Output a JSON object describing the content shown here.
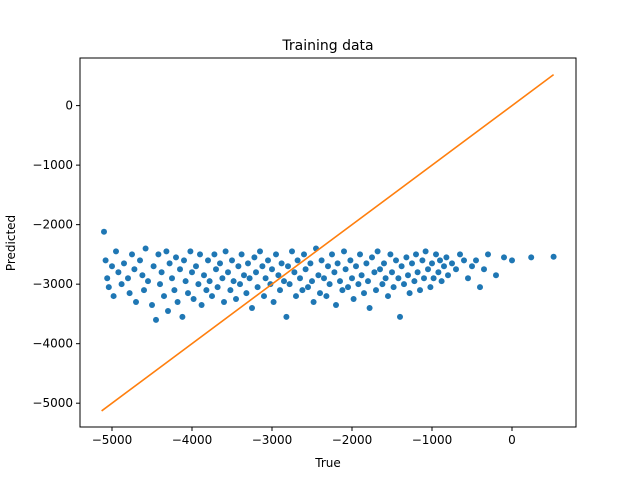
{
  "chart_data": {
    "type": "scatter",
    "title": "Training data",
    "xlabel": "True",
    "ylabel": "Predicted",
    "xlim": [
      -5400,
      800
    ],
    "ylim": [
      -5400,
      800
    ],
    "xticks": [
      -5000,
      -4000,
      -3000,
      -2000,
      -1000,
      0
    ],
    "xtick_labels": [
      "−5000",
      "−4000",
      "−3000",
      "−2000",
      "−1000",
      "0"
    ],
    "yticks": [
      -5000,
      -4000,
      -3000,
      -2000,
      -1000,
      0
    ],
    "ytick_labels": [
      "−5000",
      "−4000",
      "−3000",
      "−2000",
      "−1000",
      "0"
    ],
    "grid": false,
    "series": [
      {
        "kind": "scatter",
        "color": "#1f77b4",
        "points": [
          [
            -5100,
            -2120
          ],
          [
            -5080,
            -2600
          ],
          [
            -5060,
            -2900
          ],
          [
            -5040,
            -3050
          ],
          [
            -5000,
            -2700
          ],
          [
            -4980,
            -3200
          ],
          [
            -4950,
            -2450
          ],
          [
            -4920,
            -2800
          ],
          [
            -4880,
            -3000
          ],
          [
            -4850,
            -2650
          ],
          [
            -4800,
            -2900
          ],
          [
            -4780,
            -3150
          ],
          [
            -4750,
            -2500
          ],
          [
            -4720,
            -2750
          ],
          [
            -4700,
            -3300
          ],
          [
            -4650,
            -2600
          ],
          [
            -4620,
            -2850
          ],
          [
            -4600,
            -3100
          ],
          [
            -4580,
            -2400
          ],
          [
            -4550,
            -2950
          ],
          [
            -4500,
            -3350
          ],
          [
            -4480,
            -2700
          ],
          [
            -4450,
            -3600
          ],
          [
            -4420,
            -2500
          ],
          [
            -4400,
            -3000
          ],
          [
            -4380,
            -2800
          ],
          [
            -4350,
            -3200
          ],
          [
            -4320,
            -2450
          ],
          [
            -4300,
            -3450
          ],
          [
            -4280,
            -2650
          ],
          [
            -4250,
            -2900
          ],
          [
            -4220,
            -3100
          ],
          [
            -4200,
            -2550
          ],
          [
            -4180,
            -3300
          ],
          [
            -4150,
            -2750
          ],
          [
            -4120,
            -3550
          ],
          [
            -4100,
            -2600
          ],
          [
            -4080,
            -2950
          ],
          [
            -4050,
            -3150
          ],
          [
            -4020,
            -2450
          ],
          [
            -4000,
            -2800
          ],
          [
            -3980,
            -3250
          ],
          [
            -3950,
            -2700
          ],
          [
            -3920,
            -3000
          ],
          [
            -3900,
            -2500
          ],
          [
            -3880,
            -3350
          ],
          [
            -3850,
            -2850
          ],
          [
            -3820,
            -3100
          ],
          [
            -3800,
            -2600
          ],
          [
            -3780,
            -2950
          ],
          [
            -3750,
            -3200
          ],
          [
            -3720,
            -2500
          ],
          [
            -3700,
            -2750
          ],
          [
            -3680,
            -3050
          ],
          [
            -3650,
            -2650
          ],
          [
            -3620,
            -2900
          ],
          [
            -3600,
            -3300
          ],
          [
            -3580,
            -2450
          ],
          [
            -3550,
            -2800
          ],
          [
            -3520,
            -3100
          ],
          [
            -3500,
            -2600
          ],
          [
            -3480,
            -2950
          ],
          [
            -3450,
            -3250
          ],
          [
            -3420,
            -2700
          ],
          [
            -3400,
            -3000
          ],
          [
            -3380,
            -2500
          ],
          [
            -3350,
            -2850
          ],
          [
            -3320,
            -3150
          ],
          [
            -3300,
            -2650
          ],
          [
            -3280,
            -2900
          ],
          [
            -3250,
            -3400
          ],
          [
            -3220,
            -2550
          ],
          [
            -3200,
            -2800
          ],
          [
            -3180,
            -3050
          ],
          [
            -3150,
            -2450
          ],
          [
            -3120,
            -2700
          ],
          [
            -3100,
            -3200
          ],
          [
            -3080,
            -2900
          ],
          [
            -3050,
            -2600
          ],
          [
            -3020,
            -3000
          ],
          [
            -3000,
            -2750
          ],
          [
            -2980,
            -3300
          ],
          [
            -2950,
            -2500
          ],
          [
            -2920,
            -2850
          ],
          [
            -2900,
            -3100
          ],
          [
            -2880,
            -2650
          ],
          [
            -2850,
            -2950
          ],
          [
            -2820,
            -3550
          ],
          [
            -2800,
            -2700
          ],
          [
            -2780,
            -3000
          ],
          [
            -2750,
            -2450
          ],
          [
            -2720,
            -2800
          ],
          [
            -2700,
            -3200
          ],
          [
            -2680,
            -2600
          ],
          [
            -2650,
            -2900
          ],
          [
            -2620,
            -3100
          ],
          [
            -2600,
            -2500
          ],
          [
            -2580,
            -2750
          ],
          [
            -2550,
            -3050
          ],
          [
            -2520,
            -2650
          ],
          [
            -2500,
            -2950
          ],
          [
            -2480,
            -3300
          ],
          [
            -2450,
            -2400
          ],
          [
            -2420,
            -2850
          ],
          [
            -2400,
            -3150
          ],
          [
            -2380,
            -2600
          ],
          [
            -2350,
            -2900
          ],
          [
            -2320,
            -3200
          ],
          [
            -2300,
            -2700
          ],
          [
            -2280,
            -3000
          ],
          [
            -2250,
            -2500
          ],
          [
            -2220,
            -2800
          ],
          [
            -2200,
            -3350
          ],
          [
            -2180,
            -2650
          ],
          [
            -2150,
            -2950
          ],
          [
            -2120,
            -3100
          ],
          [
            -2100,
            -2450
          ],
          [
            -2080,
            -2750
          ],
          [
            -2050,
            -3050
          ],
          [
            -2020,
            -2600
          ],
          [
            -2000,
            -2900
          ],
          [
            -1980,
            -3250
          ],
          [
            -1950,
            -2700
          ],
          [
            -1920,
            -3000
          ],
          [
            -1900,
            -2500
          ],
          [
            -1880,
            -2850
          ],
          [
            -1850,
            -3150
          ],
          [
            -1820,
            -2650
          ],
          [
            -1800,
            -2950
          ],
          [
            -1780,
            -3400
          ],
          [
            -1750,
            -2550
          ],
          [
            -1720,
            -2800
          ],
          [
            -1700,
            -3100
          ],
          [
            -1680,
            -2450
          ],
          [
            -1650,
            -2750
          ],
          [
            -1620,
            -3000
          ],
          [
            -1600,
            -2650
          ],
          [
            -1580,
            -2900
          ],
          [
            -1550,
            -3200
          ],
          [
            -1520,
            -2500
          ],
          [
            -1500,
            -2800
          ],
          [
            -1480,
            -3050
          ],
          [
            -1450,
            -2600
          ],
          [
            -1420,
            -2900
          ],
          [
            -1400,
            -3550
          ],
          [
            -1380,
            -2700
          ],
          [
            -1350,
            -3000
          ],
          [
            -1320,
            -2550
          ],
          [
            -1300,
            -2850
          ],
          [
            -1280,
            -3150
          ],
          [
            -1250,
            -2650
          ],
          [
            -1220,
            -2950
          ],
          [
            -1200,
            -2500
          ],
          [
            -1180,
            -2800
          ],
          [
            -1150,
            -3100
          ],
          [
            -1120,
            -2600
          ],
          [
            -1100,
            -2900
          ],
          [
            -1080,
            -2450
          ],
          [
            -1050,
            -2750
          ],
          [
            -1020,
            -3050
          ],
          [
            -1000,
            -2650
          ],
          [
            -980,
            -2900
          ],
          [
            -950,
            -2500
          ],
          [
            -920,
            -2800
          ],
          [
            -900,
            -2600
          ],
          [
            -880,
            -2950
          ],
          [
            -850,
            -2700
          ],
          [
            -820,
            -2550
          ],
          [
            -800,
            -2850
          ],
          [
            -750,
            -2650
          ],
          [
            -700,
            -2750
          ],
          [
            -650,
            -2500
          ],
          [
            -600,
            -2600
          ],
          [
            -550,
            -2900
          ],
          [
            -500,
            -2700
          ],
          [
            -450,
            -2600
          ],
          [
            -400,
            -3050
          ],
          [
            -350,
            -2750
          ],
          [
            -300,
            -2500
          ],
          [
            -200,
            -2850
          ],
          [
            -100,
            -2550
          ],
          [
            0,
            -2600
          ],
          [
            240,
            -2550
          ],
          [
            520,
            -2540
          ]
        ]
      },
      {
        "kind": "line",
        "color": "#ff7f0e",
        "points": [
          [
            -5130,
            -5130
          ],
          [
            520,
            520
          ]
        ]
      }
    ]
  }
}
